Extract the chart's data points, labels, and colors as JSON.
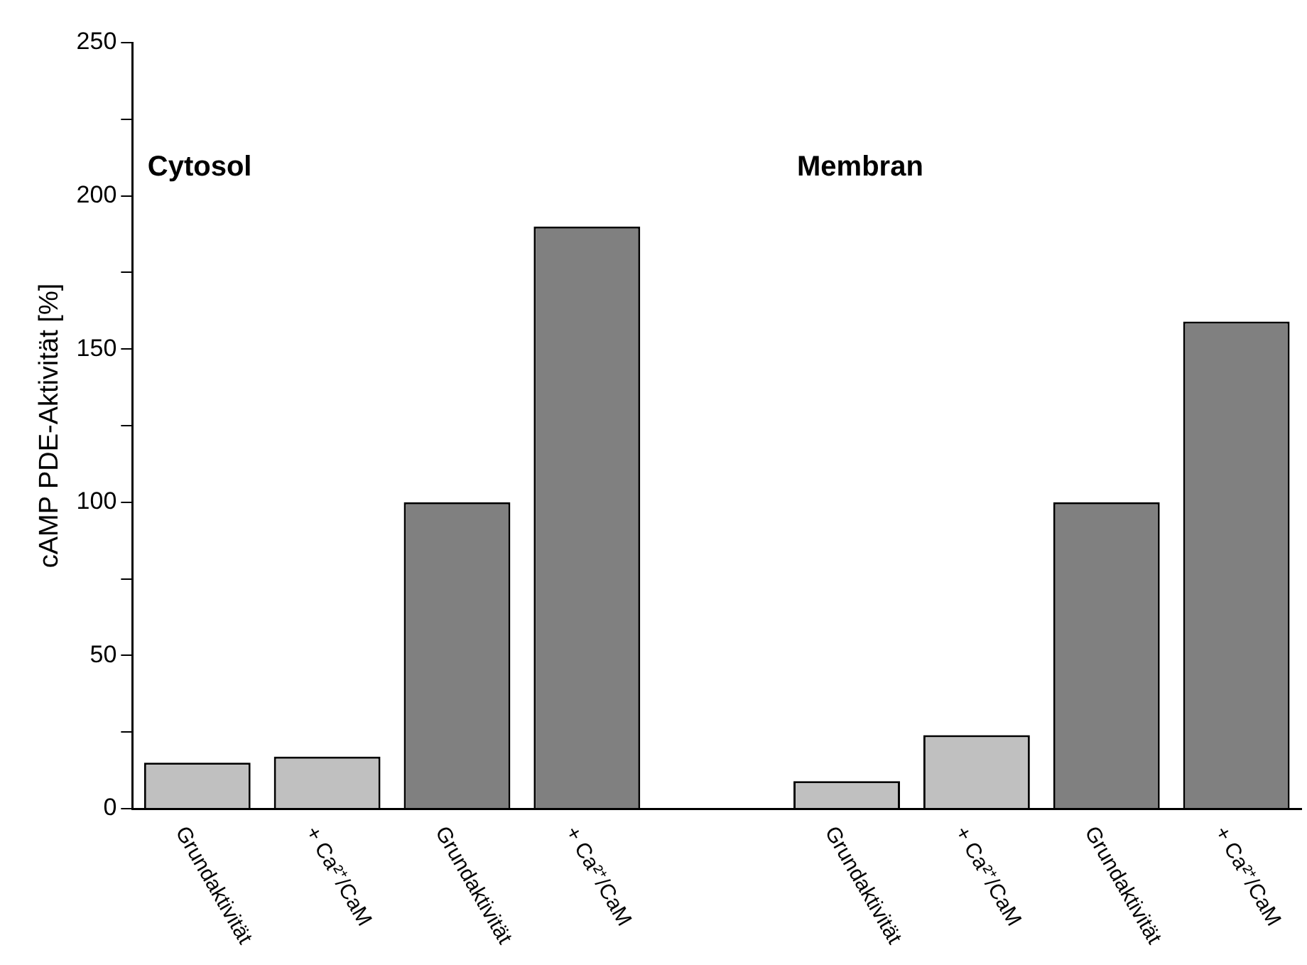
{
  "chart_data": {
    "type": "bar",
    "ylabel": "cAMP PDE-Aktivität [%]",
    "categories": [
      "Grundaktivität",
      "+ Ca²⁺/CaM",
      "Grundaktivität",
      "+ Ca²⁺/CaM",
      null,
      "Grundaktivität",
      "+ Ca²⁺/CaM",
      "Grundaktivität",
      "+ Ca²⁺/CaM"
    ],
    "values": [
      15,
      17,
      100,
      190,
      null,
      9,
      24,
      100,
      159
    ],
    "colors": [
      "#c0c0c0",
      "#c0c0c0",
      "#808080",
      "#808080",
      "#c0c0c0",
      "#c0c0c0",
      "#c0c0c0",
      "#808080",
      "#808080"
    ],
    "ylim": [
      0,
      250
    ],
    "yticks": [
      0,
      {
        "value": 25,
        "label": null
      },
      50,
      {
        "value": 75,
        "label": null
      },
      100,
      {
        "value": 125,
        "label": null
      },
      150,
      {
        "value": 175,
        "label": null
      },
      200,
      {
        "value": 225,
        "label": null
      },
      250
    ],
    "annotations": [
      "Cytosol",
      "Membran"
    ],
    "grid": false
  }
}
